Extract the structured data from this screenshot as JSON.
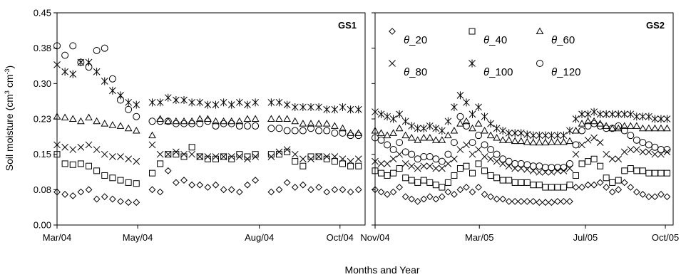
{
  "chart_data": [
    {
      "panel": "GS1",
      "type": "scatter",
      "title": "GS1",
      "xlabel": "Months and Year",
      "ylabel": "Soil moisture (cm³ cm⁻³)",
      "ylabel_parts": [
        "Soil moisture (cm",
        "3",
        " cm",
        "-3",
        ")"
      ],
      "ylim": [
        0.0,
        0.45
      ],
      "yticks": [
        "0.00",
        "0.08",
        "0.15",
        "0.23",
        "0.30",
        "0.38",
        "0.45"
      ],
      "xlim": [
        "2004-03-01",
        "2004-10-20"
      ],
      "xticks": [
        {
          "label": "Mar/04",
          "date": "2004-03-01"
        },
        {
          "label": "May/04",
          "date": "2004-05-01"
        },
        {
          "label": "Aug/04",
          "date": "2004-08-01"
        },
        {
          "label": "Oct/04",
          "date": "2004-10-01"
        }
      ],
      "x": [
        "2004-03-01",
        "2004-03-07",
        "2004-03-13",
        "2004-03-19",
        "2004-03-25",
        "2004-03-31",
        "2004-04-06",
        "2004-04-12",
        "2004-04-18",
        "2004-04-24",
        "2004-04-30",
        "2004-05-06",
        "2004-05-12",
        "2004-05-18",
        "2004-05-24",
        "2004-05-30",
        "2004-06-05",
        "2004-06-11",
        "2004-06-17",
        "2004-06-23",
        "2004-06-29",
        "2004-07-05",
        "2004-07-11",
        "2004-07-17",
        "2004-07-23",
        "2004-07-29",
        "2004-08-04",
        "2004-08-10",
        "2004-08-16",
        "2004-08-22",
        "2004-08-28",
        "2004-09-03",
        "2004-09-09",
        "2004-09-15",
        "2004-09-21",
        "2004-09-27",
        "2004-10-03",
        "2004-10-09",
        "2004-10-15"
      ],
      "series": [
        {
          "name": "θ_20",
          "marker": "diamond",
          "values": [
            0.07,
            0.065,
            0.062,
            0.07,
            0.075,
            0.055,
            0.06,
            0.055,
            0.05,
            0.048,
            0.048,
            null,
            0.075,
            0.07,
            0.115,
            0.09,
            0.095,
            0.085,
            0.085,
            0.08,
            0.085,
            0.075,
            0.075,
            0.07,
            0.085,
            0.095,
            null,
            0.07,
            0.075,
            0.09,
            0.08,
            0.085,
            0.075,
            0.08,
            0.07,
            0.075,
            0.075,
            0.07,
            0.075
          ]
        },
        {
          "name": "θ_40",
          "marker": "square",
          "values": [
            0.15,
            0.13,
            0.128,
            0.13,
            0.125,
            0.115,
            0.105,
            0.1,
            0.095,
            0.09,
            0.088,
            null,
            0.11,
            0.13,
            0.15,
            0.15,
            0.145,
            0.165,
            0.145,
            0.14,
            0.14,
            0.145,
            0.14,
            0.15,
            0.145,
            0.15,
            null,
            0.15,
            0.15,
            0.155,
            0.135,
            0.125,
            0.145,
            0.145,
            0.14,
            0.135,
            0.13,
            0.125,
            0.125
          ]
        },
        {
          "name": "θ_60",
          "marker": "triangle",
          "values": [
            0.23,
            0.228,
            0.225,
            0.22,
            0.228,
            0.22,
            0.215,
            0.212,
            0.21,
            0.205,
            0.2,
            null,
            0.19,
            0.225,
            0.22,
            0.22,
            0.22,
            0.22,
            0.225,
            0.225,
            0.22,
            0.22,
            0.22,
            0.22,
            0.225,
            0.225,
            null,
            0.225,
            0.225,
            0.225,
            0.22,
            0.215,
            0.215,
            0.215,
            0.215,
            0.21,
            0.205,
            0.195,
            0.195
          ]
        },
        {
          "name": "θ_80",
          "marker": "x",
          "values": [
            0.17,
            0.165,
            0.16,
            0.165,
            0.17,
            0.16,
            0.15,
            0.145,
            0.145,
            0.14,
            0.135,
            null,
            0.17,
            0.15,
            0.15,
            0.155,
            0.15,
            0.15,
            0.145,
            0.145,
            0.145,
            0.145,
            0.145,
            0.145,
            0.14,
            0.145,
            null,
            0.145,
            0.155,
            0.16,
            0.15,
            0.14,
            0.14,
            0.145,
            0.145,
            0.145,
            0.14,
            0.135,
            0.14
          ]
        },
        {
          "name": "θ_100",
          "marker": "asterisk",
          "values": [
            0.34,
            0.325,
            0.32,
            0.345,
            0.345,
            0.325,
            0.305,
            0.285,
            0.275,
            0.26,
            0.255,
            null,
            0.26,
            0.26,
            0.27,
            0.265,
            0.265,
            0.26,
            0.26,
            0.255,
            0.255,
            0.26,
            0.255,
            0.26,
            0.255,
            0.26,
            null,
            0.26,
            0.26,
            0.255,
            0.25,
            0.25,
            0.25,
            0.25,
            0.245,
            0.245,
            0.25,
            0.245,
            0.245
          ]
        },
        {
          "name": "θ_120",
          "marker": "circle",
          "values": [
            0.38,
            0.36,
            0.38,
            0.345,
            0.335,
            0.37,
            0.375,
            0.31,
            0.265,
            0.245,
            0.23,
            null,
            0.22,
            0.22,
            0.22,
            0.215,
            0.215,
            0.215,
            0.215,
            0.22,
            0.21,
            0.215,
            0.215,
            0.21,
            0.21,
            0.21,
            null,
            0.205,
            0.205,
            0.2,
            0.2,
            0.2,
            0.205,
            0.2,
            0.2,
            0.195,
            0.195,
            0.19,
            0.19
          ]
        }
      ]
    },
    {
      "panel": "GS2",
      "type": "scatter",
      "title": "GS2",
      "xlabel": "Months and Year",
      "ylim": [
        0.0,
        0.45
      ],
      "xlim": [
        "2004-11-01",
        "2005-10-10"
      ],
      "xticks": [
        {
          "label": "Nov/04",
          "date": "2004-11-01"
        },
        {
          "label": "Mar/05",
          "date": "2005-03-01"
        },
        {
          "label": "Jul/05",
          "date": "2005-07-01"
        },
        {
          "label": "Oct/05",
          "date": "2005-10-01"
        }
      ],
      "x": [
        "2004-11-01",
        "2004-11-08",
        "2004-11-15",
        "2004-11-22",
        "2004-11-29",
        "2004-12-06",
        "2004-12-13",
        "2004-12-20",
        "2004-12-27",
        "2005-01-03",
        "2005-01-10",
        "2005-01-17",
        "2005-01-24",
        "2005-01-31",
        "2005-02-07",
        "2005-02-14",
        "2005-02-21",
        "2005-02-28",
        "2005-03-07",
        "2005-03-14",
        "2005-03-21",
        "2005-03-28",
        "2005-04-04",
        "2005-04-11",
        "2005-04-18",
        "2005-04-25",
        "2005-05-02",
        "2005-05-09",
        "2005-05-16",
        "2005-05-23",
        "2005-05-30",
        "2005-06-06",
        "2005-06-13",
        "2005-06-20",
        "2005-06-27",
        "2005-07-04",
        "2005-07-11",
        "2005-07-18",
        "2005-07-25",
        "2005-08-01",
        "2005-08-08",
        "2005-08-15",
        "2005-08-22",
        "2005-08-29",
        "2005-09-05",
        "2005-09-12",
        "2005-09-19",
        "2005-09-26",
        "2005-10-03"
      ],
      "series": [
        {
          "name": "θ_20",
          "marker": "diamond",
          "values": [
            0.075,
            0.07,
            0.065,
            0.07,
            0.08,
            0.06,
            0.055,
            0.05,
            0.055,
            0.06,
            0.055,
            0.06,
            0.07,
            0.065,
            0.075,
            0.08,
            0.07,
            0.08,
            0.065,
            0.06,
            0.055,
            0.055,
            0.05,
            0.05,
            0.05,
            0.05,
            0.05,
            0.048,
            0.048,
            0.048,
            0.05,
            0.05,
            0.05,
            0.08,
            0.08,
            0.085,
            0.085,
            0.09,
            0.08,
            0.07,
            0.075,
            0.09,
            0.08,
            0.07,
            0.065,
            0.06,
            0.06,
            0.065,
            0.06
          ]
        },
        {
          "name": "θ_40",
          "marker": "square",
          "values": [
            0.115,
            0.11,
            0.105,
            0.11,
            0.12,
            0.1,
            0.095,
            0.09,
            0.095,
            0.09,
            0.085,
            0.08,
            0.09,
            0.105,
            0.12,
            0.125,
            0.11,
            0.13,
            0.115,
            0.105,
            0.1,
            0.095,
            0.095,
            0.09,
            0.09,
            0.09,
            0.085,
            0.085,
            0.08,
            0.08,
            0.08,
            0.08,
            0.085,
            0.105,
            0.13,
            0.135,
            0.14,
            0.125,
            0.1,
            0.09,
            0.095,
            0.115,
            0.12,
            0.115,
            0.115,
            0.11,
            0.11,
            0.11,
            0.11
          ]
        },
        {
          "name": "θ_60",
          "marker": "triangle",
          "values": [
            0.2,
            0.195,
            0.19,
            0.195,
            0.205,
            0.19,
            0.185,
            0.18,
            0.185,
            0.185,
            0.18,
            0.18,
            0.19,
            0.2,
            0.215,
            0.22,
            0.205,
            0.215,
            0.2,
            0.19,
            0.185,
            0.18,
            0.18,
            0.178,
            0.178,
            0.176,
            0.175,
            0.175,
            0.175,
            0.176,
            0.176,
            0.176,
            0.178,
            0.2,
            0.215,
            0.22,
            0.22,
            0.215,
            0.21,
            0.205,
            0.205,
            0.21,
            0.21,
            0.21,
            0.205,
            0.205,
            0.205,
            0.205,
            0.205
          ]
        },
        {
          "name": "θ_80",
          "marker": "x",
          "values": [
            0.135,
            0.13,
            0.13,
            0.14,
            0.15,
            0.13,
            0.125,
            0.12,
            0.125,
            0.125,
            0.12,
            0.12,
            0.13,
            0.14,
            0.16,
            0.17,
            0.15,
            0.16,
            0.145,
            0.14,
            0.135,
            0.13,
            0.125,
            0.12,
            0.12,
            0.118,
            0.115,
            0.112,
            0.112,
            0.112,
            0.115,
            0.115,
            0.12,
            0.15,
            0.17,
            0.18,
            0.185,
            0.175,
            0.15,
            0.14,
            0.14,
            0.155,
            0.16,
            0.16,
            0.155,
            0.155,
            0.15,
            0.15,
            0.155
          ]
        },
        {
          "name": "θ_100",
          "marker": "asterisk",
          "values": [
            0.24,
            0.235,
            0.23,
            0.225,
            0.235,
            0.22,
            0.21,
            0.205,
            0.205,
            0.21,
            0.205,
            0.2,
            0.22,
            0.25,
            0.275,
            0.26,
            0.235,
            0.25,
            0.23,
            0.215,
            0.205,
            0.2,
            0.195,
            0.195,
            0.195,
            0.192,
            0.19,
            0.19,
            0.19,
            0.19,
            0.19,
            0.19,
            0.2,
            0.225,
            0.235,
            0.235,
            0.24,
            0.235,
            0.235,
            0.235,
            0.235,
            0.235,
            0.235,
            0.23,
            0.23,
            0.23,
            0.225,
            0.225,
            0.225
          ]
        },
        {
          "name": "θ_120",
          "marker": "circle",
          "values": [
            0.185,
            0.18,
            0.17,
            0.16,
            0.175,
            0.155,
            0.15,
            0.14,
            0.145,
            0.145,
            0.14,
            0.135,
            0.15,
            0.175,
            0.23,
            0.21,
            0.175,
            0.19,
            0.17,
            0.16,
            0.15,
            0.14,
            0.135,
            0.13,
            0.13,
            0.128,
            0.125,
            0.125,
            0.122,
            0.122,
            0.122,
            0.122,
            0.13,
            0.17,
            0.2,
            0.21,
            0.215,
            0.21,
            0.205,
            0.205,
            0.21,
            0.2,
            0.19,
            0.18,
            0.175,
            0.17,
            0.165,
            0.16,
            0.16
          ]
        }
      ],
      "legend": {
        "position": "top",
        "labels": [
          "θ_20",
          "θ_40",
          "θ_60",
          "θ_80",
          "θ_100",
          "θ_120"
        ]
      }
    }
  ]
}
